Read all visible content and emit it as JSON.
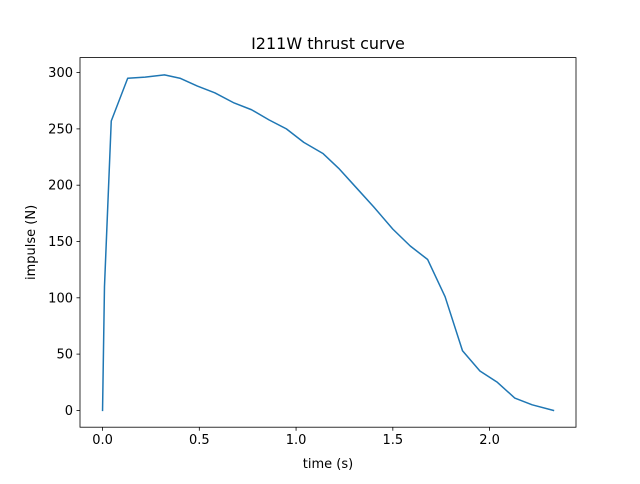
{
  "chart_data": {
    "type": "line",
    "title": "I211W thrust curve",
    "xlabel": "time (s)",
    "ylabel": "impulse (N)",
    "xlim": [
      -0.1165,
      2.4465
    ],
    "ylim": [
      -14.9,
      313.3
    ],
    "grid": false,
    "x_ticks": [
      0.0,
      0.5,
      1.0,
      1.5,
      2.0
    ],
    "x_tick_labels": [
      "0.0",
      "0.5",
      "1.0",
      "1.5",
      "2.0"
    ],
    "y_ticks": [
      0,
      50,
      100,
      150,
      200,
      250,
      300
    ],
    "y_tick_labels": [
      "0",
      "50",
      "100",
      "150",
      "200",
      "250",
      "300"
    ],
    "series": [
      {
        "color": "#1f77b4",
        "x": [
          0.0,
          0.01,
          0.045,
          0.13,
          0.22,
          0.32,
          0.4,
          0.49,
          0.58,
          0.68,
          0.77,
          0.86,
          0.95,
          1.04,
          1.14,
          1.22,
          1.31,
          1.4,
          1.5,
          1.59,
          1.68,
          1.77,
          1.86,
          1.95,
          2.04,
          2.13,
          2.22,
          2.33
        ],
        "y": [
          0,
          110,
          257,
          295,
          296,
          298,
          295,
          288,
          282,
          273,
          267,
          258,
          250,
          238,
          228,
          215,
          198,
          181,
          161,
          146,
          134,
          101,
          53,
          35,
          25,
          11,
          5,
          0
        ]
      }
    ]
  }
}
